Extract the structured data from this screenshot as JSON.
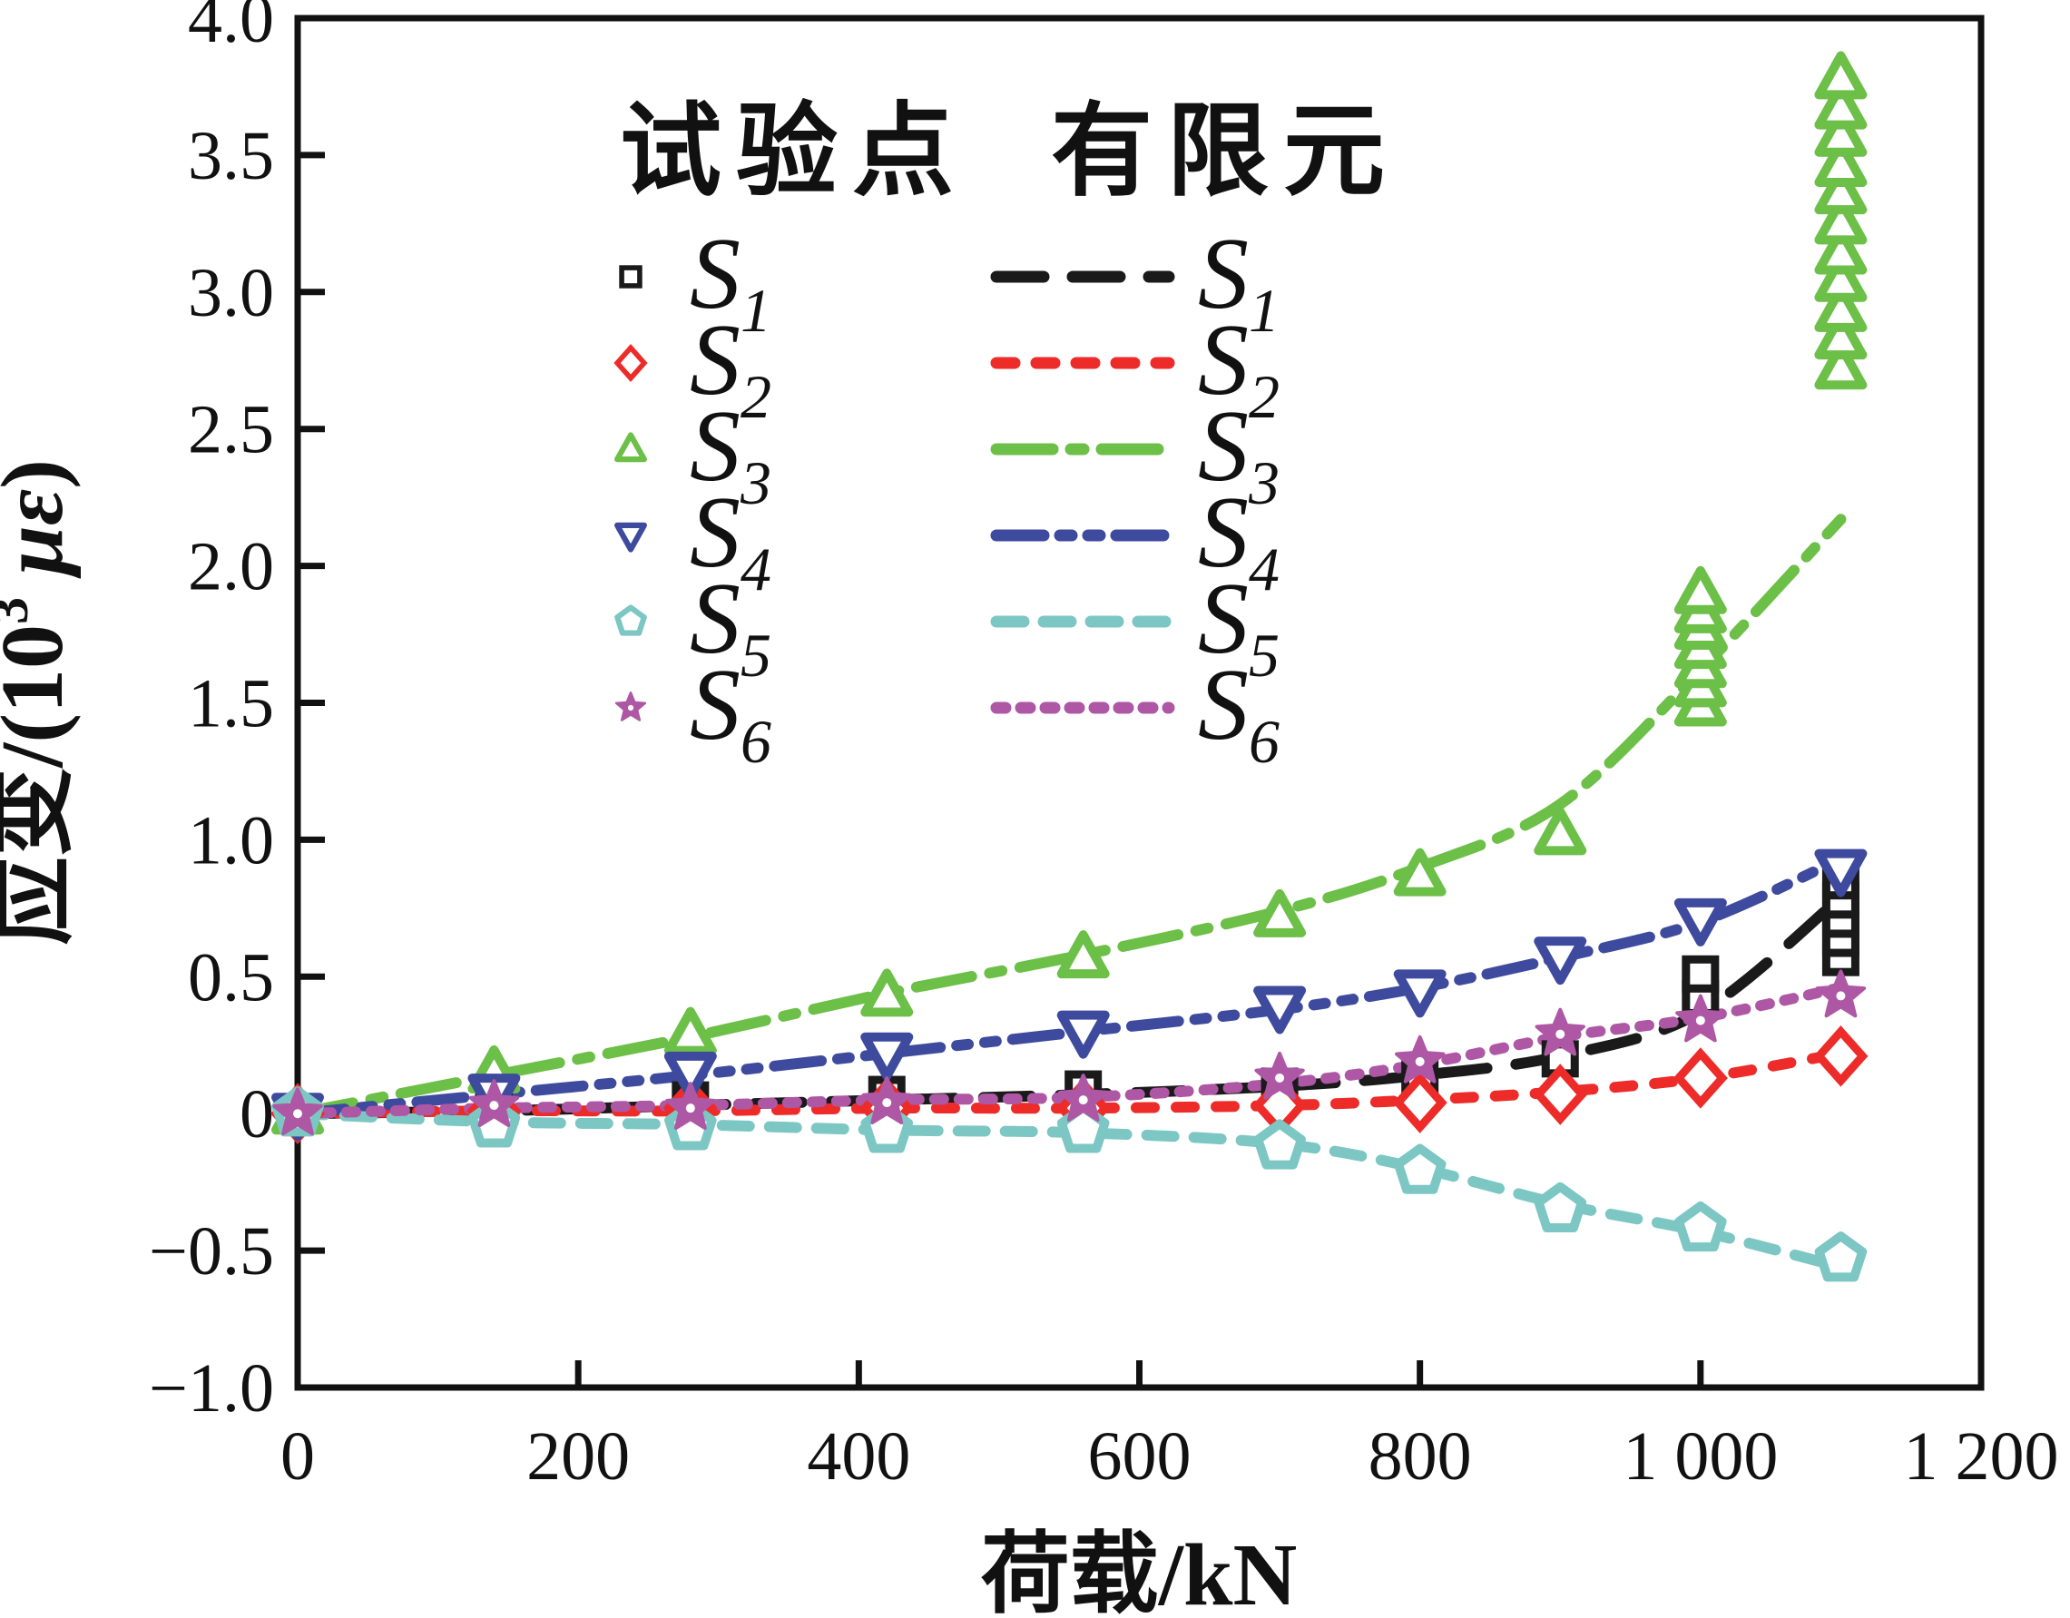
{
  "figure": {
    "background": "#ffffff",
    "axis_color": "#111111"
  },
  "chart_data": {
    "type": "line",
    "title": "",
    "xlabel": "荷载/kN",
    "ylabel": "应变/(10³ με)",
    "ylabel_parts": {
      "prefix": "应变/(10",
      "sup": "3",
      "space": " ",
      "greek": "με",
      "close": ")"
    },
    "xlim": [
      0,
      1200
    ],
    "ylim": [
      -1.0,
      4.0
    ],
    "grid": false,
    "legend_position": "top-center-inside",
    "xticks": [
      {
        "v": 0,
        "label": "0"
      },
      {
        "v": 200,
        "label": "200"
      },
      {
        "v": 400,
        "label": "400"
      },
      {
        "v": 600,
        "label": "600"
      },
      {
        "v": 800,
        "label": "800"
      },
      {
        "v": 1000,
        "label": "1 000"
      },
      {
        "v": 1200,
        "label": "1 200"
      }
    ],
    "yticks": [
      {
        "v": 4.0,
        "label": "4.0"
      },
      {
        "v": 3.5,
        "label": "3.5"
      },
      {
        "v": 3.0,
        "label": "3.0"
      },
      {
        "v": 2.5,
        "label": "2.5"
      },
      {
        "v": 2.0,
        "label": "2.0"
      },
      {
        "v": 1.5,
        "label": "1.5"
      },
      {
        "v": 1.0,
        "label": "1.0"
      },
      {
        "v": 0.5,
        "label": "0.5"
      },
      {
        "v": 0.0,
        "label": "0"
      },
      {
        "v": -0.5,
        "label": "−0.5"
      },
      {
        "v": -1.0,
        "label": "−1.0"
      }
    ],
    "legend": {
      "marker_column_header": "试验点",
      "line_column_header": "有限元"
    },
    "series": [
      {
        "id": "S1",
        "label_base": "S",
        "label_sub": "1",
        "color": "#1a1a1a",
        "marker": "square",
        "dash": [
          52,
          32
        ],
        "points": [
          [
            0,
            0
          ],
          [
            140,
            0.01
          ],
          [
            280,
            0.05
          ],
          [
            420,
            0.07
          ],
          [
            560,
            0.09
          ],
          [
            700,
            0.1
          ],
          [
            800,
            0.14
          ],
          [
            900,
            0.2
          ],
          [
            1000,
            0.42
          ],
          [
            1000,
            0.51
          ],
          [
            1100,
            0.57
          ],
          [
            1100,
            0.64
          ],
          [
            1100,
            0.71
          ],
          [
            1100,
            0.78
          ],
          [
            1100,
            0.85
          ]
        ],
        "fem": [
          [
            0,
            0
          ],
          [
            140,
            0.01
          ],
          [
            280,
            0.03
          ],
          [
            420,
            0.05
          ],
          [
            560,
            0.07
          ],
          [
            700,
            0.1
          ],
          [
            800,
            0.14
          ],
          [
            900,
            0.21
          ],
          [
            1000,
            0.37
          ],
          [
            1100,
            0.79
          ]
        ]
      },
      {
        "id": "S2",
        "label_base": "S",
        "label_sub": "2",
        "color": "#ed2b29",
        "marker": "diamond",
        "dash": [
          20,
          24
        ],
        "points": [
          [
            0,
            0
          ],
          [
            140,
            0.01
          ],
          [
            280,
            0.02
          ],
          [
            420,
            0.02
          ],
          [
            560,
            0.02
          ],
          [
            700,
            0.03
          ],
          [
            800,
            0.04
          ],
          [
            900,
            0.07
          ],
          [
            1000,
            0.13
          ],
          [
            1100,
            0.21
          ]
        ],
        "fem": [
          [
            0,
            0
          ],
          [
            140,
            0.01
          ],
          [
            280,
            0.01
          ],
          [
            420,
            0.02
          ],
          [
            560,
            0.02
          ],
          [
            700,
            0.03
          ],
          [
            800,
            0.05
          ],
          [
            900,
            0.08
          ],
          [
            1000,
            0.13
          ],
          [
            1100,
            0.22
          ]
        ]
      },
      {
        "id": "S3",
        "label_base": "S",
        "label_sub": "3",
        "color": "#6cbf47",
        "marker": "triangle-up",
        "dash": [
          62,
          20,
          14,
          20
        ],
        "points": [
          [
            0,
            0
          ],
          [
            140,
            0.15
          ],
          [
            280,
            0.29
          ],
          [
            420,
            0.43
          ],
          [
            560,
            0.57
          ],
          [
            700,
            0.72
          ],
          [
            800,
            0.87
          ],
          [
            900,
            1.02
          ],
          [
            1000,
            1.49
          ],
          [
            1000,
            1.56
          ],
          [
            1000,
            1.63
          ],
          [
            1000,
            1.7
          ],
          [
            1000,
            1.77
          ],
          [
            1000,
            1.83
          ],
          [
            1000,
            1.9
          ],
          [
            1100,
            2.72
          ],
          [
            1100,
            2.83
          ],
          [
            1100,
            2.93
          ],
          [
            1100,
            3.04
          ],
          [
            1100,
            3.14
          ],
          [
            1100,
            3.25
          ],
          [
            1100,
            3.36
          ],
          [
            1100,
            3.46
          ],
          [
            1100,
            3.57
          ],
          [
            1100,
            3.67
          ],
          [
            1100,
            3.78
          ]
        ],
        "fem": [
          [
            0,
            0
          ],
          [
            140,
            0.14
          ],
          [
            280,
            0.28
          ],
          [
            420,
            0.44
          ],
          [
            560,
            0.58
          ],
          [
            700,
            0.74
          ],
          [
            800,
            0.9
          ],
          [
            900,
            1.13
          ],
          [
            1000,
            1.62
          ],
          [
            1100,
            2.17
          ]
        ]
      },
      {
        "id": "S4",
        "label_base": "S",
        "label_sub": "4",
        "color": "#3e4a9d",
        "marker": "triangle-down",
        "dash": [
          52,
          18,
          13,
          18,
          13,
          18
        ],
        "points": [
          [
            0,
            0
          ],
          [
            140,
            0.07
          ],
          [
            280,
            0.15
          ],
          [
            420,
            0.22
          ],
          [
            560,
            0.3
          ],
          [
            700,
            0.39
          ],
          [
            800,
            0.45
          ],
          [
            900,
            0.57
          ],
          [
            1000,
            0.71
          ],
          [
            1100,
            0.89
          ]
        ],
        "fem": [
          [
            0,
            0
          ],
          [
            140,
            0.07
          ],
          [
            280,
            0.14
          ],
          [
            420,
            0.22
          ],
          [
            560,
            0.3
          ],
          [
            700,
            0.38
          ],
          [
            800,
            0.46
          ],
          [
            900,
            0.57
          ],
          [
            1000,
            0.7
          ],
          [
            1100,
            0.93
          ]
        ]
      },
      {
        "id": "S5",
        "label_base": "S",
        "label_sub": "5",
        "color": "#7cc7c3",
        "marker": "pentagon",
        "dash": [
          30,
          22
        ],
        "points": [
          [
            0,
            0
          ],
          [
            140,
            -0.04
          ],
          [
            280,
            -0.05
          ],
          [
            420,
            -0.06
          ],
          [
            560,
            -0.06
          ],
          [
            700,
            -0.12
          ],
          [
            800,
            -0.21
          ],
          [
            900,
            -0.35
          ],
          [
            1000,
            -0.42
          ],
          [
            1100,
            -0.53
          ]
        ],
        "fem": [
          [
            0,
            0
          ],
          [
            140,
            -0.03
          ],
          [
            280,
            -0.04
          ],
          [
            420,
            -0.06
          ],
          [
            560,
            -0.07
          ],
          [
            700,
            -0.11
          ],
          [
            800,
            -0.2
          ],
          [
            900,
            -0.33
          ],
          [
            1000,
            -0.43
          ],
          [
            1100,
            -0.56
          ]
        ]
      },
      {
        "id": "S6",
        "label_base": "S",
        "label_sub": "6",
        "color": "#ae57a5",
        "marker": "star",
        "dash": [
          10,
          17
        ],
        "points": [
          [
            0,
            0
          ],
          [
            140,
            0.03
          ],
          [
            280,
            0.02
          ],
          [
            420,
            0.04
          ],
          [
            560,
            0.05
          ],
          [
            700,
            0.13
          ],
          [
            800,
            0.19
          ],
          [
            900,
            0.29
          ],
          [
            1000,
            0.34
          ],
          [
            1100,
            0.43
          ]
        ],
        "fem": [
          [
            0,
            0
          ],
          [
            140,
            0.02
          ],
          [
            280,
            0.03
          ],
          [
            420,
            0.05
          ],
          [
            560,
            0.06
          ],
          [
            700,
            0.11
          ],
          [
            800,
            0.18
          ],
          [
            900,
            0.28
          ],
          [
            1000,
            0.35
          ],
          [
            1100,
            0.46
          ]
        ]
      }
    ]
  }
}
